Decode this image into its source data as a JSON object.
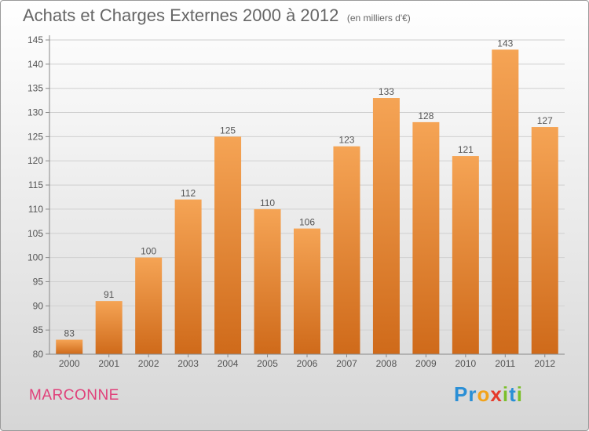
{
  "title": "Achats et Charges Externes 2000 à 2012",
  "subtitle": "(en milliers d'€)",
  "location": "MARCONNE",
  "brand": {
    "letters": [
      {
        "ch": "P",
        "color": "#2a8fd6"
      },
      {
        "ch": "r",
        "color": "#2a8fd6"
      },
      {
        "ch": "o",
        "color": "#f2a31b"
      },
      {
        "ch": "x",
        "color": "#e53a2a"
      },
      {
        "ch": "i",
        "color": "#7bbf2a"
      },
      {
        "ch": "t",
        "color": "#2a8fd6"
      },
      {
        "ch": "i",
        "color": "#7bbf2a"
      }
    ]
  },
  "colors": {
    "bar_top": "#f5a455",
    "bar_bottom": "#cf6a1a",
    "text": "#666666",
    "location": "#e0407a"
  },
  "chart_data": {
    "type": "bar",
    "categories": [
      "2000",
      "2001",
      "2002",
      "2003",
      "2004",
      "2005",
      "2006",
      "2007",
      "2008",
      "2009",
      "2010",
      "2011",
      "2012"
    ],
    "values": [
      83,
      91,
      100,
      112,
      125,
      110,
      106,
      123,
      133,
      128,
      121,
      143,
      127
    ],
    "ylim": [
      80,
      145
    ],
    "yticks": [
      80,
      85,
      90,
      95,
      100,
      105,
      110,
      115,
      120,
      125,
      130,
      135,
      140,
      145
    ],
    "grid": true,
    "title": "Achats et Charges Externes 2000 à 2012",
    "subtitle": "(en milliers d'€)"
  }
}
